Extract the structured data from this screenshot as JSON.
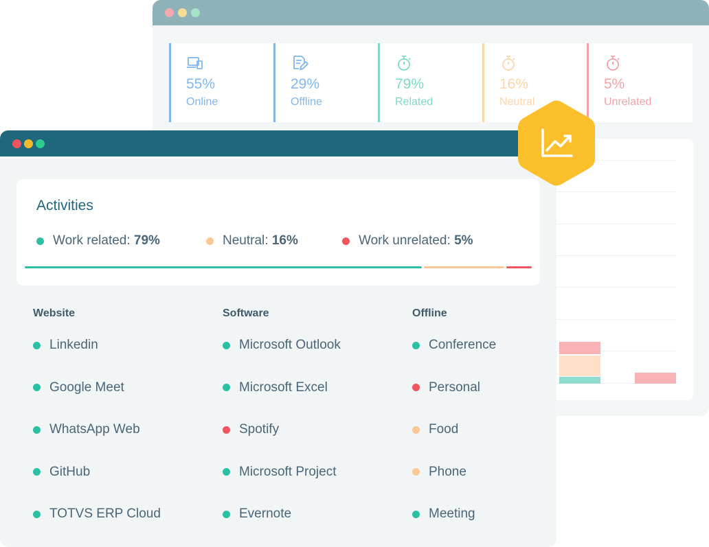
{
  "colors": {
    "work": "#2bbfa3",
    "neutral": "#fcc896",
    "unrelated": "#f0545e",
    "online": "#9ac4f0",
    "offline": "#9ac4f0",
    "badge": "#fbbf2c"
  },
  "back_window": {
    "stats": [
      {
        "icon": "devices-icon",
        "pct": "55%",
        "label": "Online",
        "color": "#7fb6ee"
      },
      {
        "icon": "edit-document-icon",
        "pct": "29%",
        "label": "Offline",
        "color": "#7fb6ee"
      },
      {
        "icon": "stopwatch-icon",
        "pct": "79%",
        "label": "Related",
        "color": "#7ed9c9"
      },
      {
        "icon": "stopwatch-icon",
        "pct": "16%",
        "label": "Neutral",
        "color": "#fcd6ad"
      },
      {
        "icon": "stopwatch-icon",
        "pct": "5%",
        "label": "Unrelated",
        "color": "#f5a1a6"
      }
    ]
  },
  "badge": {
    "icon": "trending-up-icon"
  },
  "activities": {
    "title": "Activities",
    "legend": [
      {
        "label": "Work related:",
        "value": "79%",
        "color": "#2bbfa3"
      },
      {
        "label": "Neutral:",
        "value": "16%",
        "color": "#fcc896"
      },
      {
        "label": "Work unrelated:",
        "value": "5%",
        "color": "#f0545e"
      }
    ],
    "progress": [
      {
        "fraction": 0.79,
        "color": "#2bbfa3"
      },
      {
        "fraction": 0.16,
        "color": "#fcc896"
      },
      {
        "fraction": 0.05,
        "color": "#f0545e"
      }
    ]
  },
  "columns": [
    {
      "heading": "Website",
      "items": [
        {
          "label": "Linkedin",
          "color": "#2bbfa3"
        },
        {
          "label": "Google Meet",
          "color": "#2bbfa3"
        },
        {
          "label": "WhatsApp Web",
          "color": "#2bbfa3"
        },
        {
          "label": "GitHub",
          "color": "#2bbfa3"
        },
        {
          "label": "TOTVS ERP Cloud",
          "color": "#2bbfa3"
        }
      ]
    },
    {
      "heading": "Software",
      "items": [
        {
          "label": "Microsoft Outlook",
          "color": "#2bbfa3"
        },
        {
          "label": "Microsoft Excel",
          "color": "#2bbfa3"
        },
        {
          "label": "Spotify",
          "color": "#f0545e"
        },
        {
          "label": "Microsoft Project",
          "color": "#2bbfa3"
        },
        {
          "label": "Evernote",
          "color": "#2bbfa3"
        }
      ]
    },
    {
      "heading": "Offline",
      "items": [
        {
          "label": "Conference",
          "color": "#2bbfa3"
        },
        {
          "label": "Personal",
          "color": "#f0545e"
        },
        {
          "label": "Food",
          "color": "#fcc896"
        },
        {
          "label": "Phone",
          "color": "#fcc896"
        },
        {
          "label": "Meeting",
          "color": "#2bbfa3"
        }
      ]
    }
  ]
}
